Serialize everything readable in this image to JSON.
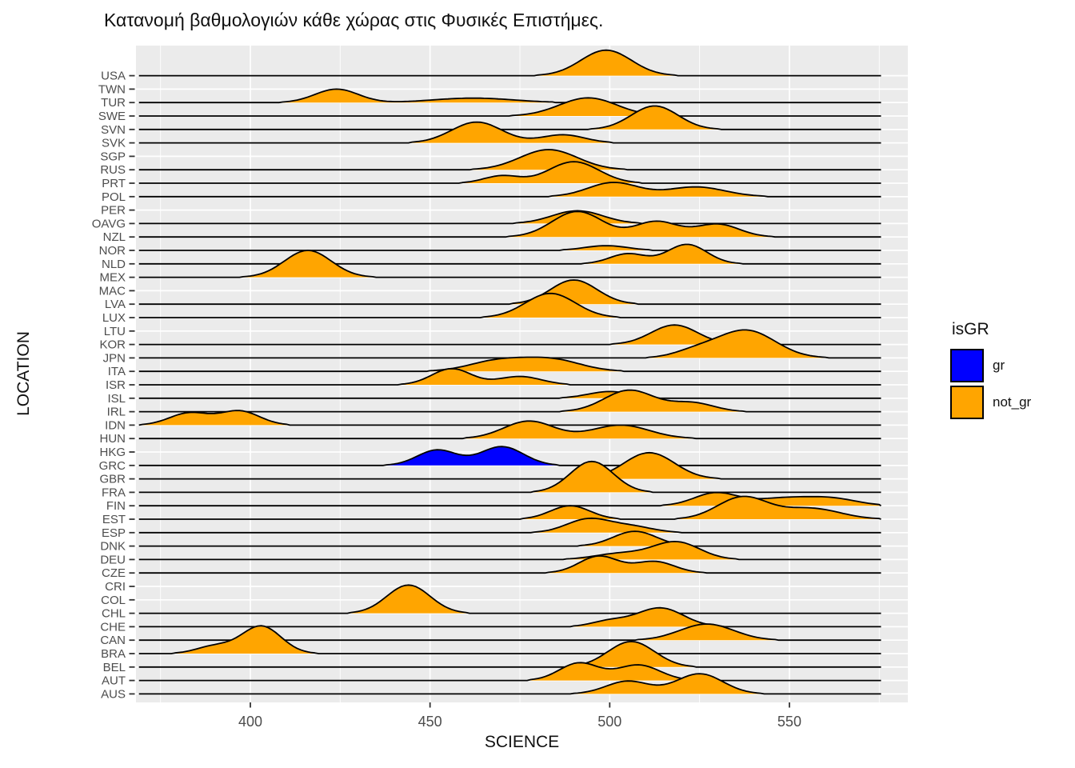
{
  "title": "Κατανομή βαθμολογιών κάθε χώρας στις Φυσικές Επιστήμες.",
  "legend": {
    "title": "isGR",
    "entries": [
      {
        "label": "gr",
        "color": "#0000FF"
      },
      {
        "label": "not_gr",
        "color": "#FFA500"
      }
    ]
  },
  "chart_data": {
    "type": "area",
    "subtype": "ridgeline-density",
    "title": "Κατανομή βαθμολογιών κάθε χώρας στις Φυσικές Επιστήμες.",
    "xlabel": "SCIENCE",
    "ylabel": "LOCATION",
    "x_ticks": [
      400,
      450,
      500,
      550
    ],
    "x_minor_gridlines": [
      375,
      425,
      475,
      525,
      575
    ],
    "xlim": [
      368,
      583
    ],
    "baseline_range": [
      369,
      575.5
    ],
    "grid": true,
    "legend_position": "right",
    "colors": {
      "gr": "#0000FF",
      "not_gr": "#FFA500",
      "panel_bg": "#EBEBEB",
      "gridline": "#FFFFFF",
      "outline": "#000000",
      "tick_text": "#4d4d4d"
    },
    "height_unit": "one y-axis row spacing",
    "rows": [
      {
        "location": "USA",
        "group": "not_gr",
        "peaks": [
          {
            "center": 499,
            "height": 1.9,
            "sigma": 7
          }
        ]
      },
      {
        "location": "TWN",
        "group": "not_gr",
        "peaks": []
      },
      {
        "location": "TUR",
        "group": "not_gr",
        "peaks": [
          {
            "center": 424,
            "height": 1.0,
            "sigma": 6
          },
          {
            "center": 462,
            "height": 0.33,
            "sigma": 11
          }
        ]
      },
      {
        "location": "SWE",
        "group": "not_gr",
        "peaks": [
          {
            "center": 494,
            "height": 1.35,
            "sigma": 8
          }
        ]
      },
      {
        "location": "SVN",
        "group": "not_gr",
        "peaks": [
          {
            "center": 512.5,
            "height": 1.75,
            "sigma": 6.5
          }
        ]
      },
      {
        "location": "SVK",
        "group": "not_gr",
        "peaks": [
          {
            "center": 463,
            "height": 1.55,
            "sigma": 7
          },
          {
            "center": 487,
            "height": 0.6,
            "sigma": 6
          }
        ]
      },
      {
        "location": "SGP",
        "group": "not_gr",
        "peaks": []
      },
      {
        "location": "RUS",
        "group": "not_gr",
        "peaks": [
          {
            "center": 483,
            "height": 1.5,
            "sigma": 8
          }
        ]
      },
      {
        "location": "PRT",
        "group": "not_gr",
        "peaks": [
          {
            "center": 470,
            "height": 0.55,
            "sigma": 5
          },
          {
            "center": 490,
            "height": 1.6,
            "sigma": 7
          }
        ]
      },
      {
        "location": "POL",
        "group": "not_gr",
        "peaks": [
          {
            "center": 501,
            "height": 1.05,
            "sigma": 7
          },
          {
            "center": 524,
            "height": 0.72,
            "sigma": 8
          }
        ]
      },
      {
        "location": "PER",
        "group": "not_gr",
        "peaks": []
      },
      {
        "location": "OAVG",
        "group": "not_gr",
        "peaks": [
          {
            "center": 491,
            "height": 0.95,
            "sigma": 7
          }
        ]
      },
      {
        "location": "NZL",
        "group": "not_gr",
        "peaks": [
          {
            "center": 491,
            "height": 1.9,
            "sigma": 7
          },
          {
            "center": 513,
            "height": 1.15,
            "sigma": 6
          },
          {
            "center": 530,
            "height": 0.95,
            "sigma": 6
          }
        ]
      },
      {
        "location": "NOR",
        "group": "not_gr",
        "peaks": [
          {
            "center": 499,
            "height": 0.35,
            "sigma": 6
          }
        ]
      },
      {
        "location": "NLD",
        "group": "not_gr",
        "peaks": [
          {
            "center": 505,
            "height": 0.75,
            "sigma": 5
          },
          {
            "center": 521.5,
            "height": 1.45,
            "sigma": 5.5
          }
        ]
      },
      {
        "location": "MEX",
        "group": "not_gr",
        "peaks": [
          {
            "center": 416,
            "height": 2.0,
            "sigma": 6.5
          }
        ]
      },
      {
        "location": "MAC",
        "group": "not_gr",
        "peaks": []
      },
      {
        "location": "LVA",
        "group": "not_gr",
        "peaks": [
          {
            "center": 490,
            "height": 1.8,
            "sigma": 6.5
          }
        ]
      },
      {
        "location": "LUX",
        "group": "not_gr",
        "peaks": [
          {
            "center": 483.5,
            "height": 1.8,
            "sigma": 7
          }
        ]
      },
      {
        "location": "LTU",
        "group": "not_gr",
        "peaks": []
      },
      {
        "location": "KOR",
        "group": "not_gr",
        "peaks": [
          {
            "center": 518,
            "height": 1.45,
            "sigma": 6.5
          }
        ]
      },
      {
        "location": "JPN",
        "group": "not_gr",
        "peaks": [
          {
            "center": 524,
            "height": 0.5,
            "sigma": 6
          },
          {
            "center": 538,
            "height": 2.05,
            "sigma": 8
          }
        ]
      },
      {
        "location": "ITA",
        "group": "not_gr",
        "peaks": [
          {
            "center": 469,
            "height": 0.78,
            "sigma": 8
          },
          {
            "center": 484,
            "height": 0.85,
            "sigma": 8
          }
        ]
      },
      {
        "location": "ISR",
        "group": "not_gr",
        "peaks": [
          {
            "center": 456,
            "height": 1.2,
            "sigma": 5.5
          },
          {
            "center": 475,
            "height": 0.62,
            "sigma": 6
          }
        ]
      },
      {
        "location": "ISL",
        "group": "not_gr",
        "peaks": [
          {
            "center": 500,
            "height": 0.5,
            "sigma": 6
          }
        ]
      },
      {
        "location": "IRL",
        "group": "not_gr",
        "peaks": [
          {
            "center": 505.5,
            "height": 1.6,
            "sigma": 7
          },
          {
            "center": 523,
            "height": 0.65,
            "sigma": 6
          }
        ]
      },
      {
        "location": "IDN",
        "group": "not_gr",
        "peaks": [
          {
            "center": 383,
            "height": 0.9,
            "sigma": 5.5
          },
          {
            "center": 397,
            "height": 1.05,
            "sigma": 5.5
          }
        ]
      },
      {
        "location": "HUN",
        "group": "not_gr",
        "peaks": [
          {
            "center": 477.5,
            "height": 1.3,
            "sigma": 7
          },
          {
            "center": 503,
            "height": 1.0,
            "sigma": 8
          }
        ]
      },
      {
        "location": "HKG",
        "group": "not_gr",
        "peaks": []
      },
      {
        "location": "GRC",
        "group": "gr",
        "peaks": [
          {
            "center": 452,
            "height": 1.15,
            "sigma": 5.5
          },
          {
            "center": 470,
            "height": 1.4,
            "sigma": 6
          }
        ]
      },
      {
        "location": "GBR",
        "group": "not_gr",
        "peaks": [
          {
            "center": 511,
            "height": 1.95,
            "sigma": 7
          }
        ]
      },
      {
        "location": "FRA",
        "group": "not_gr",
        "peaks": [
          {
            "center": 495,
            "height": 2.3,
            "sigma": 6
          }
        ]
      },
      {
        "location": "FIN",
        "group": "not_gr",
        "peaks": [
          {
            "center": 529.5,
            "height": 0.95,
            "sigma": 6
          },
          {
            "center": 548,
            "height": 0.55,
            "sigma": 8
          },
          {
            "center": 562,
            "height": 0.5,
            "sigma": 7
          }
        ]
      },
      {
        "location": "EST",
        "group": "not_gr",
        "peaks": [
          {
            "center": 489,
            "height": 1.0,
            "sigma": 5.5
          },
          {
            "center": 537,
            "height": 1.65,
            "sigma": 7
          },
          {
            "center": 556,
            "height": 0.8,
            "sigma": 8
          }
        ]
      },
      {
        "location": "ESP",
        "group": "not_gr",
        "peaks": [
          {
            "center": 494,
            "height": 1.0,
            "sigma": 6
          },
          {
            "center": 506,
            "height": 0.45,
            "sigma": 6
          }
        ]
      },
      {
        "location": "DNK",
        "group": "not_gr",
        "peaks": [
          {
            "center": 507,
            "height": 1.1,
            "sigma": 6
          }
        ]
      },
      {
        "location": "DEU",
        "group": "not_gr",
        "peaks": [
          {
            "center": 503,
            "height": 0.45,
            "sigma": 7
          },
          {
            "center": 518.5,
            "height": 1.3,
            "sigma": 6.5
          }
        ]
      },
      {
        "location": "CZE",
        "group": "not_gr",
        "peaks": [
          {
            "center": 497,
            "height": 1.25,
            "sigma": 5.5
          },
          {
            "center": 512.5,
            "height": 0.85,
            "sigma": 5.5
          }
        ]
      },
      {
        "location": "CRI",
        "group": "not_gr",
        "peaks": []
      },
      {
        "location": "COL",
        "group": "not_gr",
        "peaks": []
      },
      {
        "location": "CHL",
        "group": "not_gr",
        "peaks": [
          {
            "center": 444,
            "height": 2.1,
            "sigma": 6
          }
        ]
      },
      {
        "location": "CHE",
        "group": "not_gr",
        "peaks": [
          {
            "center": 500,
            "height": 0.42,
            "sigma": 5
          },
          {
            "center": 514,
            "height": 1.4,
            "sigma": 6.5
          }
        ]
      },
      {
        "location": "CAN",
        "group": "not_gr",
        "peaks": [
          {
            "center": 527,
            "height": 1.2,
            "sigma": 7.5
          }
        ]
      },
      {
        "location": "BRA",
        "group": "not_gr",
        "peaks": [
          {
            "center": 390,
            "height": 0.55,
            "sigma": 5
          },
          {
            "center": 403,
            "height": 2.05,
            "sigma": 5.5
          }
        ]
      },
      {
        "location": "BEL",
        "group": "not_gr",
        "peaks": [
          {
            "center": 506,
            "height": 1.9,
            "sigma": 6.5
          }
        ]
      },
      {
        "location": "AUT",
        "group": "not_gr",
        "peaks": [
          {
            "center": 491.5,
            "height": 1.3,
            "sigma": 5.5
          },
          {
            "center": 508,
            "height": 1.15,
            "sigma": 6
          }
        ]
      },
      {
        "location": "AUS",
        "group": "not_gr",
        "peaks": [
          {
            "center": 505,
            "height": 0.95,
            "sigma": 6
          },
          {
            "center": 525,
            "height": 1.5,
            "sigma": 6.5
          }
        ]
      }
    ]
  }
}
